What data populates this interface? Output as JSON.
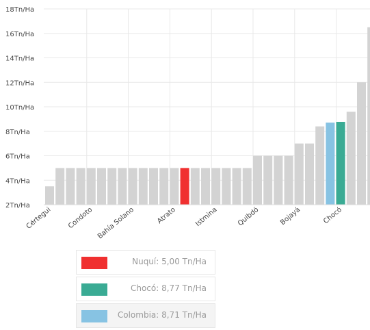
{
  "chart_data": {
    "type": "bar",
    "title": "",
    "xlabel": "",
    "ylabel": "",
    "ylim": [
      2,
      18
    ],
    "y_ticks": [
      "2Tn/Ha",
      "4Tn/Ha",
      "6Tn/Ha",
      "8Tn/Ha",
      "10Tn/Ha",
      "12Tn/Ha",
      "14Tn/Ha",
      "16Tn/Ha",
      "18Tn/Ha"
    ],
    "grid": true,
    "x_tick_labels": [
      "Cértegui",
      "Condoto",
      "Bahía Solano",
      "Atrato",
      "Istmina",
      "Quibdó",
      "Bojayá",
      "Chocó"
    ],
    "values": [
      3.5,
      5,
      5,
      5,
      5,
      5,
      5,
      5,
      5,
      5,
      5,
      5,
      5,
      5,
      5,
      5,
      5,
      5,
      5,
      5,
      6,
      6,
      6,
      6,
      7,
      7,
      8.4,
      8.71,
      8.77,
      9.6,
      12,
      16.5
    ],
    "highlight": {
      "13": "#f03030",
      "27": "#87c3e3",
      "28": "#3aab94"
    },
    "base_color": "#d3d3d3",
    "legend_position": "bottom-center"
  },
  "legend": [
    {
      "label": "Nuquí:  5,00 Tn/Ha",
      "color": "#f03030"
    },
    {
      "label": "Chocó:  8,77 Tn/Ha",
      "color": "#3aab94"
    },
    {
      "label": "Colombia:  8,71 Tn/Ha",
      "color": "#87c3e3"
    }
  ]
}
